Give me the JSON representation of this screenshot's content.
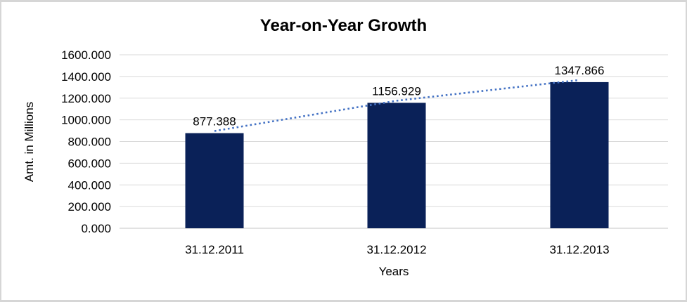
{
  "window": {
    "background": "#FFFFFF",
    "border_color": "#D6D6D6"
  },
  "chart_data": {
    "type": "bar",
    "title": "Year-on-Year Growth",
    "categories": [
      "31.12.2011",
      "31.12.2012",
      "31.12.2013"
    ],
    "values": [
      877.388,
      1156.929,
      1347.866
    ],
    "value_labels": [
      "877.388",
      "1156.929",
      "1347.866"
    ],
    "xlabel": "Years",
    "ylabel": "Amt. in Millions",
    "ylim": [
      0,
      1600
    ],
    "ytick_step": 200,
    "yticks": [
      0,
      200,
      400,
      600,
      800,
      1000,
      1200,
      1400,
      1600
    ],
    "ytick_labels": [
      "0.000",
      "200.000",
      "400.000",
      "600.000",
      "800.000",
      "1000.000",
      "1200.000",
      "1400.000",
      "1600.000"
    ],
    "grid": true,
    "legend": "none",
    "trendline": {
      "type": "dotted",
      "color": "#4472C4"
    },
    "colors": {
      "bar": "#0A2158",
      "gridline": "#D9D9D9",
      "baseline": "#C6C6C6",
      "axis_text": "#000000",
      "title_text": "#000000"
    }
  }
}
